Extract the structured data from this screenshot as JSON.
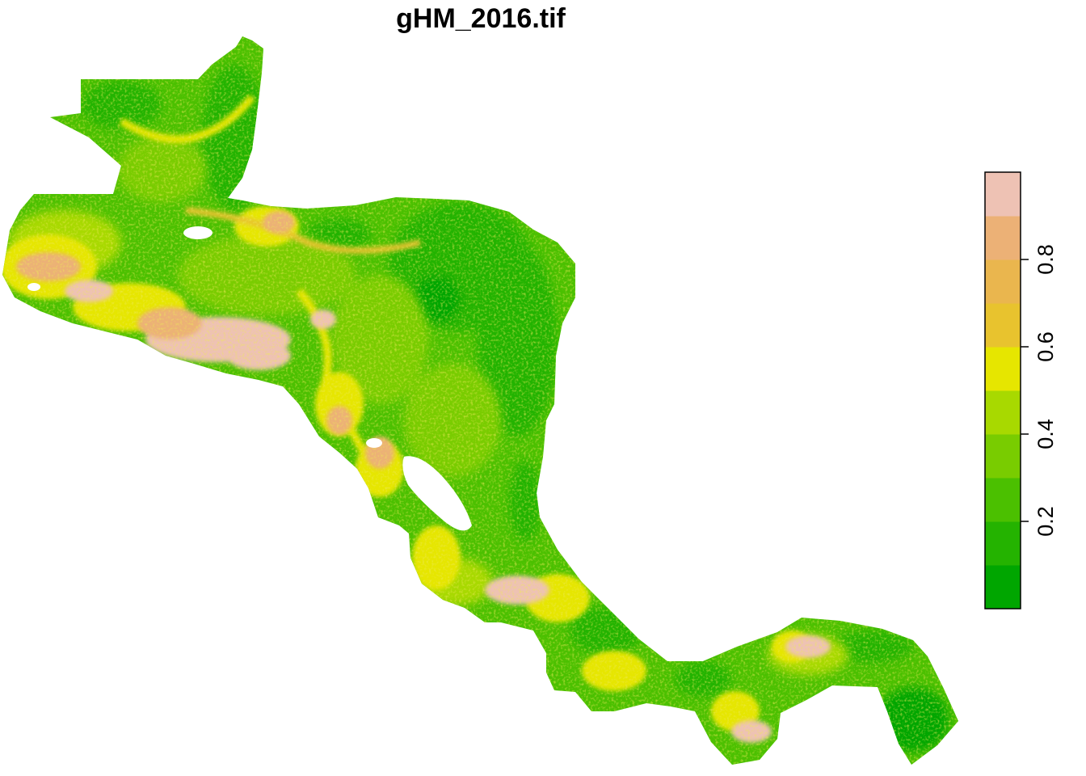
{
  "title": "gHM_2016.tif",
  "legend": {
    "colors": [
      "#00A600",
      "#24B300",
      "#4BC000",
      "#79CC00",
      "#A8D900",
      "#E6E600",
      "#E8C32E",
      "#EAB64E",
      "#ECB176",
      "#EEC2B4",
      "#F2F2F2"
    ],
    "breaks": [
      0.0,
      0.1,
      0.2,
      0.3,
      0.4,
      0.5,
      0.6,
      0.7,
      0.8,
      0.9,
      1.0
    ],
    "tick_values": [
      0.2,
      0.4,
      0.6,
      0.8
    ],
    "tick_labels": [
      "0.2",
      "0.4",
      "0.6",
      "0.8"
    ]
  },
  "map": {
    "region": "Central America",
    "palette_name": "terrain"
  }
}
